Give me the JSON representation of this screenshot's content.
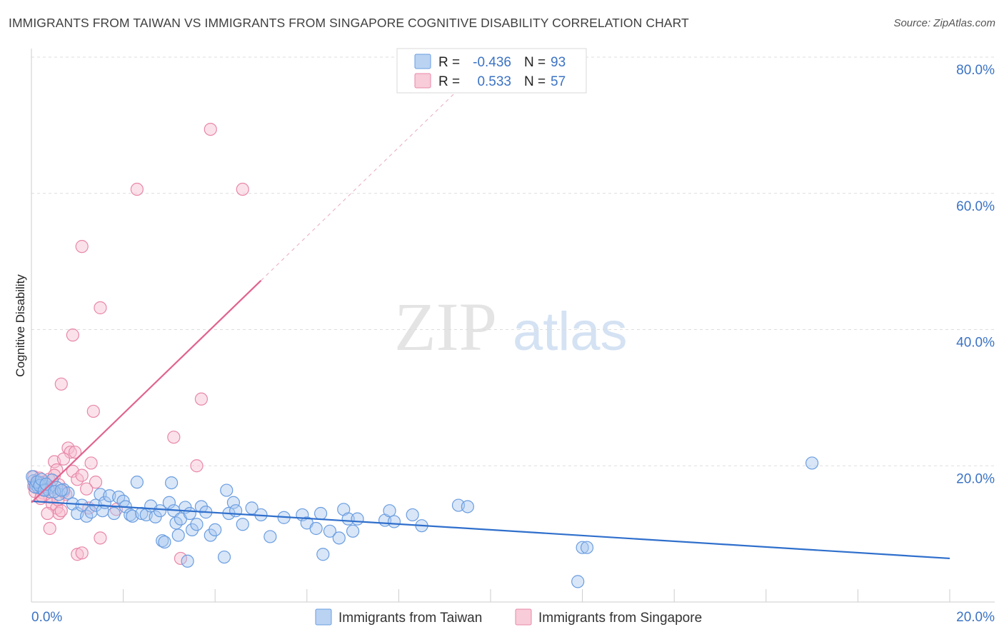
{
  "title": "IMMIGRANTS FROM TAIWAN VS IMMIGRANTS FROM SINGAPORE COGNITIVE DISABILITY CORRELATION CHART",
  "source": "Source: ZipAtlas.com",
  "watermark": {
    "zip": "ZIP",
    "atlas": "atlas"
  },
  "colors": {
    "taiwan_fill": "#a9c8f0",
    "taiwan_stroke": "#6a9de0",
    "taiwan_line": "#2f6fcc",
    "singapore_fill": "#f6bfd0",
    "singapore_stroke": "#e887a8",
    "singapore_line": "#e0638f",
    "axis_label": "#3b73c4",
    "grid": "#dddddd"
  },
  "stats_legend": {
    "rows": [
      {
        "r_label": "R =",
        "r_value": "-0.436",
        "n_label": "N =",
        "n_value": "93"
      },
      {
        "r_label": "R =",
        "r_value": "0.533",
        "n_label": "N =",
        "n_value": "57"
      }
    ]
  },
  "chart_data": {
    "type": "scatter",
    "title": "IMMIGRANTS FROM TAIWAN VS IMMIGRANTS FROM SINGAPORE COGNITIVE DISABILITY CORRELATION CHART",
    "xlabel": "",
    "ylabel": "Cognitive Disability",
    "xlim": [
      0,
      20
    ],
    "ylim": [
      0,
      80
    ],
    "x_tick_labels": [
      "0.0%",
      "20.0%"
    ],
    "y_ticks": [
      20,
      40,
      60,
      80
    ],
    "y_tick_labels": [
      "20.0%",
      "40.0%",
      "60.0%",
      "80.0%"
    ],
    "grid": true,
    "legend_position": "bottom-center",
    "series": [
      {
        "name": "Immigrants from Taiwan",
        "r": -0.436,
        "n": 93,
        "trend": {
          "x": [
            0,
            20
          ],
          "y": [
            14.8,
            6.4
          ]
        },
        "points": [
          [
            0.05,
            17.8
          ],
          [
            0.1,
            17.2
          ],
          [
            0.15,
            16.8
          ],
          [
            0.2,
            17.5
          ],
          [
            0.25,
            16.5
          ],
          [
            0.3,
            17.0
          ],
          [
            0.35,
            16.6
          ],
          [
            0.4,
            16.2
          ],
          [
            0.45,
            17.9
          ],
          [
            0.55,
            16.8
          ],
          [
            0.6,
            15.8
          ],
          [
            0.7,
            16.5
          ],
          [
            0.8,
            16.0
          ],
          [
            0.9,
            14.4
          ],
          [
            1.0,
            13.0
          ],
          [
            1.1,
            14.2
          ],
          [
            1.2,
            12.6
          ],
          [
            1.3,
            13.2
          ],
          [
            1.4,
            14.2
          ],
          [
            1.5,
            15.8
          ],
          [
            1.55,
            13.4
          ],
          [
            1.6,
            14.6
          ],
          [
            1.7,
            15.6
          ],
          [
            1.8,
            13.0
          ],
          [
            1.9,
            15.4
          ],
          [
            2.0,
            14.8
          ],
          [
            2.05,
            14.0
          ],
          [
            2.15,
            12.8
          ],
          [
            2.2,
            12.6
          ],
          [
            2.3,
            17.6
          ],
          [
            2.4,
            13.0
          ],
          [
            2.5,
            12.8
          ],
          [
            2.6,
            14.1
          ],
          [
            2.7,
            12.5
          ],
          [
            2.8,
            13.4
          ],
          [
            2.85,
            9.0
          ],
          [
            2.9,
            8.8
          ],
          [
            3.0,
            14.6
          ],
          [
            3.05,
            17.5
          ],
          [
            3.1,
            13.4
          ],
          [
            3.15,
            11.6
          ],
          [
            3.2,
            9.8
          ],
          [
            3.25,
            12.2
          ],
          [
            3.35,
            13.9
          ],
          [
            3.4,
            6.0
          ],
          [
            3.45,
            13.0
          ],
          [
            3.5,
            10.6
          ],
          [
            3.6,
            11.4
          ],
          [
            3.7,
            14.0
          ],
          [
            3.8,
            13.2
          ],
          [
            3.9,
            9.8
          ],
          [
            4.0,
            10.6
          ],
          [
            4.2,
            6.6
          ],
          [
            4.25,
            16.4
          ],
          [
            4.3,
            13.0
          ],
          [
            4.4,
            14.6
          ],
          [
            4.45,
            13.4
          ],
          [
            4.6,
            11.4
          ],
          [
            4.8,
            13.8
          ],
          [
            5.0,
            12.8
          ],
          [
            5.2,
            9.6
          ],
          [
            5.5,
            12.4
          ],
          [
            5.9,
            12.8
          ],
          [
            6.0,
            11.6
          ],
          [
            6.2,
            10.8
          ],
          [
            6.3,
            13.0
          ],
          [
            6.35,
            7.0
          ],
          [
            6.5,
            10.4
          ],
          [
            6.7,
            9.4
          ],
          [
            6.8,
            13.6
          ],
          [
            6.9,
            12.2
          ],
          [
            7.0,
            10.4
          ],
          [
            7.1,
            12.2
          ],
          [
            7.7,
            12.0
          ],
          [
            7.8,
            13.4
          ],
          [
            7.9,
            11.8
          ],
          [
            8.3,
            12.8
          ],
          [
            8.5,
            11.2
          ],
          [
            9.3,
            14.2
          ],
          [
            9.5,
            14.0
          ],
          [
            12.0,
            8.0
          ],
          [
            12.1,
            8.0
          ],
          [
            11.9,
            3.0
          ],
          [
            17.0,
            20.4
          ],
          [
            0.02,
            18.4
          ],
          [
            0.08,
            16.9
          ],
          [
            0.12,
            17.6
          ],
          [
            0.18,
            17.1
          ],
          [
            0.22,
            18.0
          ],
          [
            0.28,
            16.4
          ],
          [
            0.32,
            17.3
          ],
          [
            0.5,
            16.2
          ],
          [
            0.65,
            16.4
          ]
        ]
      },
      {
        "name": "Immigrants from Singapore",
        "r": 0.533,
        "n": 57,
        "trend": {
          "x": [
            0,
            5.0
          ],
          "y": [
            14.6,
            47.2
          ]
        },
        "trend_dashed_extension": {
          "x": [
            5.0,
            10.0
          ],
          "y": [
            47.2,
            79.8
          ]
        },
        "points": [
          [
            3.9,
            69.4
          ],
          [
            2.3,
            60.6
          ],
          [
            4.6,
            60.6
          ],
          [
            1.1,
            52.2
          ],
          [
            1.5,
            43.2
          ],
          [
            0.9,
            39.2
          ],
          [
            0.65,
            32.0
          ],
          [
            1.35,
            28.0
          ],
          [
            3.7,
            29.8
          ],
          [
            3.1,
            24.2
          ],
          [
            0.8,
            22.6
          ],
          [
            0.85,
            22.0
          ],
          [
            0.95,
            22.0
          ],
          [
            0.5,
            20.6
          ],
          [
            0.55,
            19.4
          ],
          [
            0.7,
            21.0
          ],
          [
            0.9,
            19.2
          ],
          [
            1.3,
            20.4
          ],
          [
            3.6,
            20.0
          ],
          [
            1.0,
            18.0
          ],
          [
            1.1,
            18.6
          ],
          [
            1.4,
            17.6
          ],
          [
            0.6,
            17.2
          ],
          [
            0.3,
            17.0
          ],
          [
            0.2,
            16.6
          ],
          [
            0.15,
            17.4
          ],
          [
            0.1,
            16.8
          ],
          [
            0.05,
            17.0
          ],
          [
            0.25,
            16.0
          ],
          [
            0.4,
            15.4
          ],
          [
            0.45,
            14.4
          ],
          [
            0.75,
            15.8
          ],
          [
            1.2,
            16.6
          ],
          [
            0.55,
            13.8
          ],
          [
            0.6,
            13.0
          ],
          [
            0.35,
            13.0
          ],
          [
            0.65,
            13.4
          ],
          [
            0.4,
            10.8
          ],
          [
            1.25,
            13.8
          ],
          [
            1.85,
            13.6
          ],
          [
            1.5,
            9.4
          ],
          [
            1.0,
            7.0
          ],
          [
            1.1,
            7.2
          ],
          [
            3.25,
            6.4
          ],
          [
            0.2,
            15.2
          ],
          [
            0.05,
            18.4
          ],
          [
            0.08,
            16.2
          ],
          [
            0.12,
            17.8
          ],
          [
            0.18,
            18.2
          ],
          [
            0.22,
            15.6
          ],
          [
            0.28,
            17.6
          ],
          [
            0.32,
            16.4
          ],
          [
            0.38,
            18.0
          ],
          [
            0.42,
            16.8
          ],
          [
            0.5,
            18.6
          ],
          [
            0.58,
            15.0
          ],
          [
            0.7,
            16.2
          ]
        ]
      }
    ]
  },
  "bottom_legend": [
    {
      "label": "Immigrants from Taiwan"
    },
    {
      "label": "Immigrants from Singapore"
    }
  ]
}
